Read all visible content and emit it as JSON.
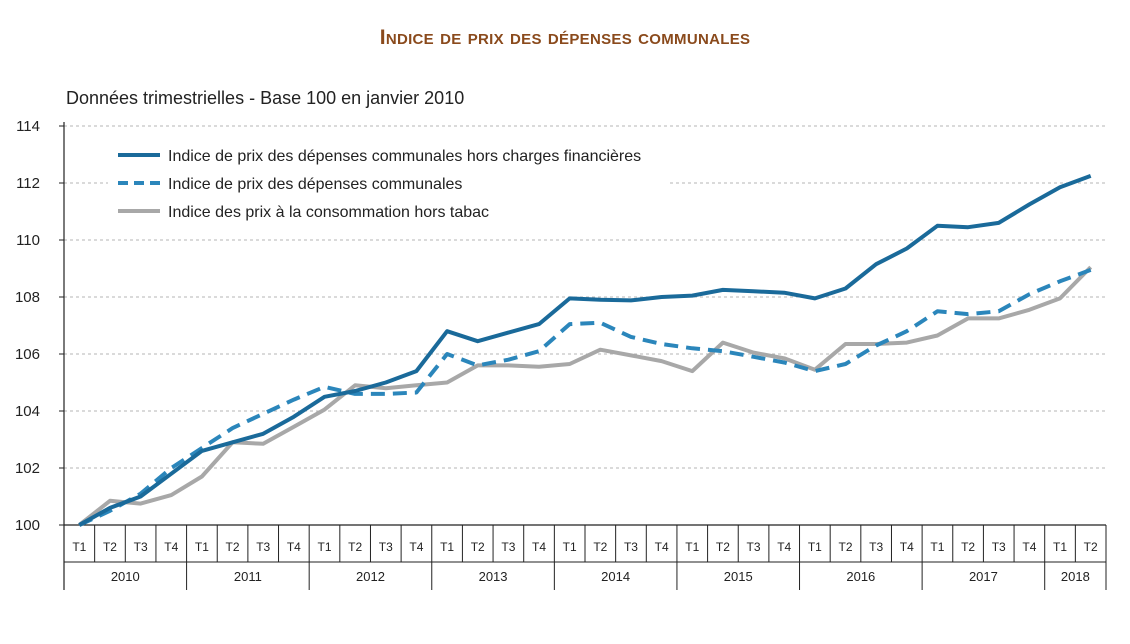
{
  "chart_data": {
    "type": "line",
    "title": "Indice de prix des dépenses communales",
    "subtitle": "Données trimestrielles - Base 100 en janvier 2010",
    "ylim": [
      100,
      114
    ],
    "yticks": [
      "100",
      "102",
      "104",
      "106",
      "108",
      "110",
      "112",
      "114"
    ],
    "quarters": [
      "T1",
      "T2",
      "T3",
      "T4",
      "T1",
      "T2",
      "T3",
      "T4",
      "T1",
      "T2",
      "T3",
      "T4",
      "T1",
      "T2",
      "T3",
      "T4",
      "T1",
      "T2",
      "T3",
      "T4",
      "T1",
      "T2",
      "T3",
      "T4",
      "T1",
      "T2",
      "T3",
      "T4",
      "T1",
      "T2",
      "T3",
      "T4",
      "T1",
      "T2"
    ],
    "years": [
      {
        "label": "2010",
        "quarters": 4
      },
      {
        "label": "2011",
        "quarters": 4
      },
      {
        "label": "2012",
        "quarters": 4
      },
      {
        "label": "2013",
        "quarters": 4
      },
      {
        "label": "2014",
        "quarters": 4
      },
      {
        "label": "2015",
        "quarters": 4
      },
      {
        "label": "2016",
        "quarters": 4
      },
      {
        "label": "2017",
        "quarters": 4
      },
      {
        "label": "2018",
        "quarters": 2
      }
    ],
    "series": [
      {
        "name": "Indice de prix des dépenses communales hors charges financières",
        "color": "#1a6a9a",
        "style": "solid",
        "values": [
          100.0,
          100.6,
          101.0,
          101.8,
          102.6,
          102.9,
          103.2,
          103.8,
          104.5,
          104.7,
          105.0,
          105.4,
          106.8,
          106.45,
          106.75,
          107.05,
          107.95,
          107.9,
          107.88,
          108.0,
          108.05,
          108.25,
          108.2,
          108.15,
          107.95,
          108.3,
          109.15,
          109.7,
          110.5,
          110.45,
          110.6,
          111.25,
          111.85,
          112.25
        ]
      },
      {
        "name": "Indice de prix des dépenses communales",
        "color": "#2b86bb",
        "style": "dashed",
        "values": [
          100.0,
          100.5,
          101.1,
          102.0,
          102.7,
          103.4,
          103.9,
          104.4,
          104.85,
          104.6,
          104.6,
          104.65,
          106.0,
          105.6,
          105.8,
          106.1,
          107.05,
          107.1,
          106.6,
          106.35,
          106.2,
          106.1,
          105.9,
          105.7,
          105.4,
          105.65,
          106.3,
          106.8,
          107.5,
          107.4,
          107.5,
          108.1,
          108.55,
          108.95
        ]
      },
      {
        "name": "Indice des prix à la consommation hors tabac",
        "color": "#a8a8a8",
        "style": "solid",
        "values": [
          100.0,
          100.85,
          100.75,
          101.05,
          101.7,
          102.9,
          102.85,
          103.45,
          104.05,
          104.9,
          104.8,
          104.9,
          105.0,
          105.6,
          105.6,
          105.55,
          105.65,
          106.15,
          105.95,
          105.75,
          105.4,
          106.4,
          106.05,
          105.85,
          105.45,
          106.35,
          106.35,
          106.4,
          106.65,
          107.25,
          107.25,
          107.55,
          107.95,
          109.05
        ]
      }
    ]
  }
}
